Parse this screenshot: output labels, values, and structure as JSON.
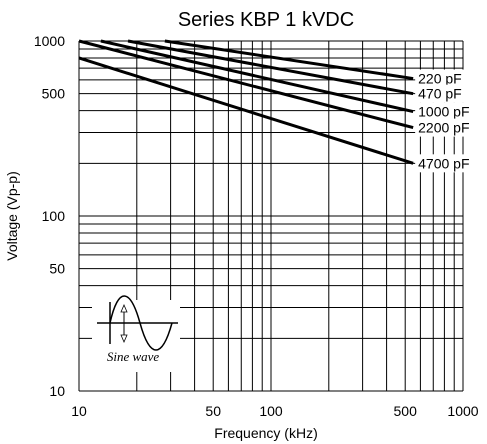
{
  "chart_data": {
    "type": "line",
    "title": "Series KBP 1 kVDC",
    "xlabel": "Frequency (kHz)",
    "ylabel": "Voltage (Vp-p)",
    "x_scale": "log",
    "y_scale": "log",
    "xlim": [
      10,
      1000
    ],
    "ylim": [
      10,
      1000
    ],
    "x_ticks": [
      10,
      50,
      100,
      500,
      1000
    ],
    "x_tick_labels": [
      "10",
      "50",
      "100",
      "500",
      "1000"
    ],
    "y_ticks": [
      10,
      50,
      100,
      500,
      1000
    ],
    "y_tick_labels": [
      "10",
      "50",
      "100",
      "500",
      "1000"
    ],
    "grid": true,
    "series": [
      {
        "name": "220 pF",
        "x": [
          28,
          550
        ],
        "y": [
          1000,
          610
        ]
      },
      {
        "name": "470 pF",
        "x": [
          18,
          550
        ],
        "y": [
          1000,
          500
        ]
      },
      {
        "name": "1000 pF",
        "x": [
          13,
          550
        ],
        "y": [
          1000,
          395
        ]
      },
      {
        "name": "2200 pF",
        "x": [
          10,
          550
        ],
        "y": [
          1000,
          320
        ]
      },
      {
        "name": "4700 pF",
        "x": [
          10,
          550
        ],
        "y": [
          800,
          200
        ]
      }
    ],
    "inset": {
      "label": "Sine wave"
    }
  }
}
